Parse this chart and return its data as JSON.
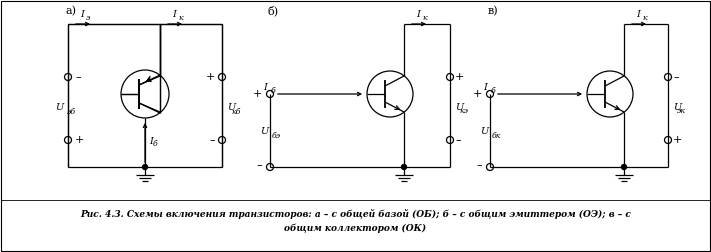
{
  "fig_width": 7.11,
  "fig_height": 2.52,
  "dpi": 100,
  "bg_color": "#ffffff",
  "caption_line1": "Рис. 4.3. Схемы включения транзисторов: а – с общей базой (ОБ); б – с общим эмиттером (ОЭ); в – с",
  "caption_line2": "общим коллектором (ОК)",
  "label_a": "а)",
  "label_b": "б)",
  "label_v": "в)",
  "font_caption": 6.5,
  "font_label": 8,
  "font_text": 7
}
